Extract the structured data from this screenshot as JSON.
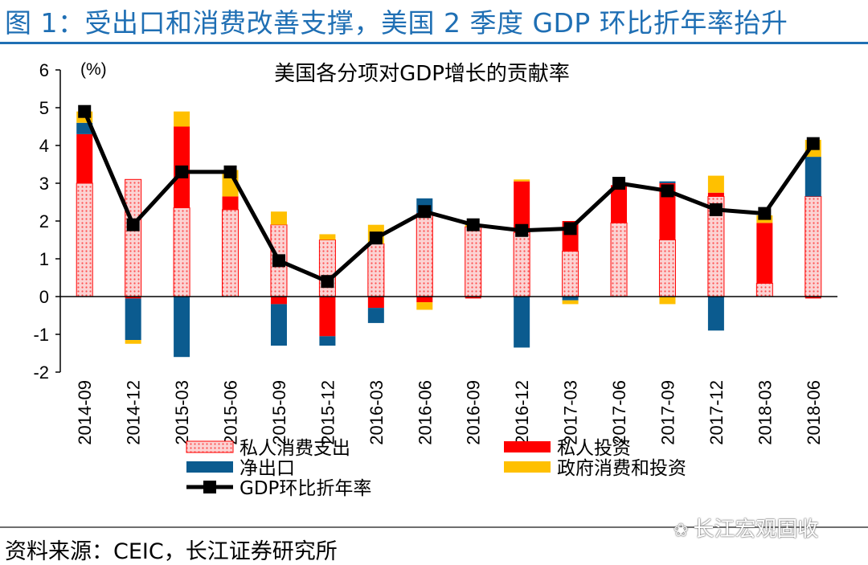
{
  "figure_title": "图 1：受出口和消费改善支撑，美国 2 季度 GDP 环比折年率抬升",
  "source_note": "资料来源：CEIC，长江证券研究所",
  "watermark": "长江宏观固收",
  "colors": {
    "consumption": "#ff0000",
    "consumption_fill": "#fbd3d3",
    "investment": "#ff0000",
    "net_exports": "#0b5b8f",
    "government": "#ffc000",
    "gdp_line": "#000000",
    "title_blue": "#1f6fb4"
  },
  "chart_data": {
    "type": "bar",
    "stacked": true,
    "title": "美国各分项对GDP增长的贡献率",
    "ylabel": "(%)",
    "ylim": [
      -2,
      6
    ],
    "yticks": [
      "-2",
      "-1",
      "0",
      "1",
      "2",
      "3",
      "4",
      "5",
      "6"
    ],
    "categories": [
      "2014-09",
      "2014-12",
      "2015-03",
      "2015-06",
      "2015-09",
      "2015-12",
      "2016-03",
      "2016-06",
      "2016-09",
      "2016-12",
      "2017-03",
      "2017-06",
      "2017-09",
      "2017-12",
      "2018-03",
      "2018-06"
    ],
    "series": [
      {
        "name": "私人消费支出",
        "kind": "bar",
        "style": "dotted",
        "values": [
          3.0,
          3.1,
          2.35,
          2.3,
          1.9,
          1.5,
          1.4,
          2.2,
          1.85,
          1.7,
          1.2,
          1.95,
          1.5,
          2.65,
          0.35,
          2.65
        ]
      },
      {
        "name": "私人投资",
        "kind": "bar",
        "style": "solid",
        "values": [
          1.3,
          -0.05,
          2.15,
          0.35,
          -0.2,
          -1.05,
          -0.3,
          -0.15,
          -0.05,
          1.35,
          0.8,
          1.0,
          1.5,
          0.1,
          1.6,
          -0.05
        ]
      },
      {
        "name": "净出口",
        "kind": "bar",
        "style": "solid",
        "values": [
          0.3,
          -1.1,
          -1.6,
          0.0,
          -1.1,
          -0.25,
          -0.4,
          0.4,
          0.0,
          -1.35,
          -0.1,
          0.0,
          0.05,
          -0.9,
          0.0,
          1.05
        ]
      },
      {
        "name": "政府消费和投资",
        "kind": "bar",
        "style": "solid",
        "values": [
          0.3,
          -0.1,
          0.4,
          0.7,
          0.35,
          0.15,
          0.5,
          -0.2,
          0.05,
          0.05,
          -0.1,
          0.0,
          -0.2,
          0.45,
          0.2,
          0.45
        ]
      },
      {
        "name": "GDP环比折年率",
        "kind": "line",
        "values": [
          4.9,
          1.9,
          3.3,
          3.3,
          0.95,
          0.4,
          1.55,
          2.25,
          1.9,
          1.75,
          1.8,
          3.0,
          2.8,
          2.3,
          2.2,
          4.05
        ]
      }
    ],
    "legend_position": "bottom"
  }
}
